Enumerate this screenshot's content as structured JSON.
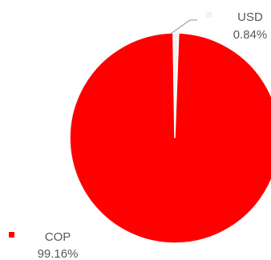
{
  "chart_data": {
    "type": "pie",
    "title": "",
    "slices": [
      {
        "label": "COP",
        "value": 99.16,
        "display": "99.16%",
        "color": "#ff0000"
      },
      {
        "label": "USD",
        "value": 0.84,
        "display": "0.84%",
        "color": "#f2f2f2"
      }
    ],
    "legend": "none",
    "data_labels": "outside-with-marker"
  }
}
